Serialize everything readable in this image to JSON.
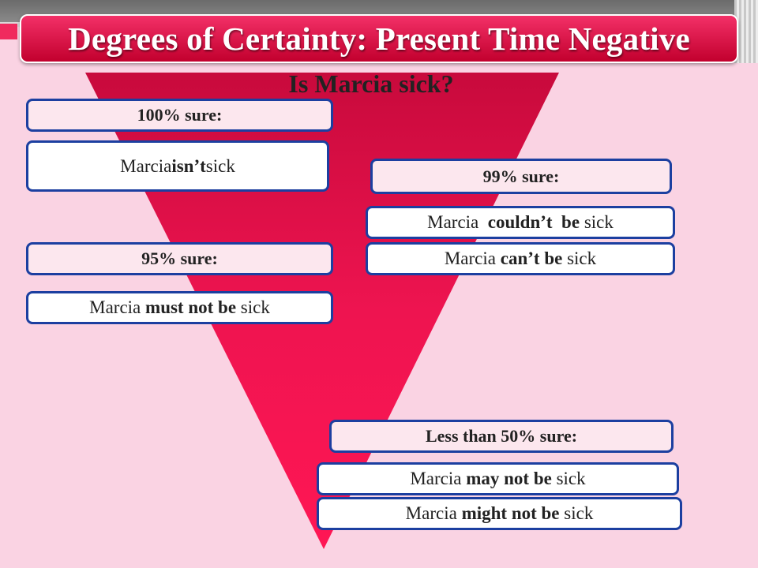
{
  "slide": {
    "title": "Degrees of Certainty: Present Time Negative",
    "question": "Is Marcia sick?"
  },
  "levels": [
    {
      "label": "100% sure:",
      "sentences": [
        [
          "Marcia ",
          "isn’t",
          " sick"
        ]
      ]
    },
    {
      "label": "99% sure:",
      "sentences": [
        [
          "Marcia  ",
          "couldn’t  be",
          " sick"
        ],
        [
          "Marcia ",
          "can’t be",
          " sick"
        ]
      ]
    },
    {
      "label": "95% sure:",
      "sentences": [
        [
          "Marcia ",
          "must not be",
          " sick"
        ]
      ]
    },
    {
      "label": "Less than 50% sure:",
      "sentences": [
        [
          "Marcia ",
          "may not be",
          " sick"
        ],
        [
          "Marcia ",
          "might not be",
          " sick"
        ]
      ]
    }
  ],
  "colors": {
    "banner": "#e0134a",
    "funnel": "#e8114a",
    "box_border": "#1c3fa0",
    "background": "#fad3e3"
  }
}
